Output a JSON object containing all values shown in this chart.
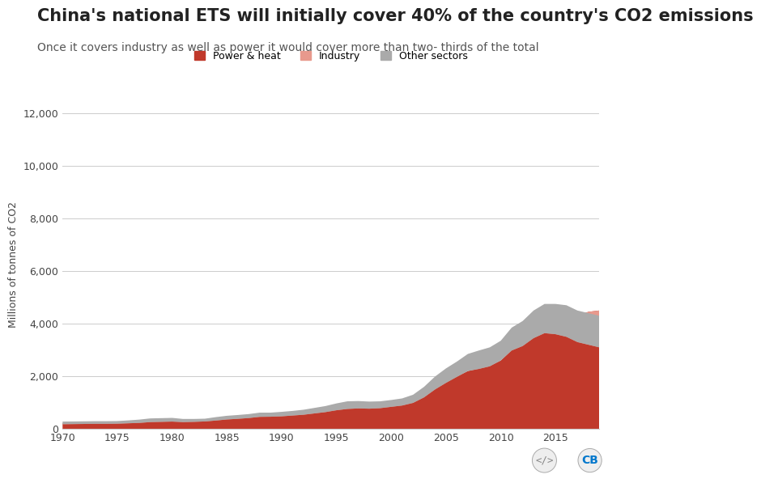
{
  "title": "China's national ETS will initially cover 40% of the country's CO2 emissions",
  "subtitle": "Once it covers industry as well as power it would cover more than two- thirds of the total",
  "ylabel": "Millions of tonnes of CO2",
  "background_color": "#ffffff",
  "title_fontsize": 15,
  "subtitle_fontsize": 10,
  "colors": {
    "power_heat": "#c0392b",
    "industry": "#e8998d",
    "other_sectors": "#aaaaaa"
  },
  "legend_labels": [
    "Power & heat",
    "Industry",
    "Other sectors"
  ],
  "years": [
    1970,
    1971,
    1972,
    1973,
    1974,
    1975,
    1976,
    1977,
    1978,
    1979,
    1980,
    1981,
    1982,
    1983,
    1984,
    1985,
    1986,
    1987,
    1988,
    1989,
    1990,
    1991,
    1992,
    1993,
    1994,
    1995,
    1996,
    1997,
    1998,
    1999,
    2000,
    2001,
    2002,
    2003,
    2004,
    2005,
    2006,
    2007,
    2008,
    2009,
    2010,
    2011,
    2012,
    2013,
    2014,
    2015,
    2016,
    2017,
    2018,
    2019
  ],
  "power_heat": [
    220,
    230,
    240,
    250,
    255,
    270,
    290,
    310,
    340,
    350,
    360,
    340,
    340,
    350,
    390,
    430,
    450,
    480,
    520,
    530,
    550,
    580,
    610,
    660,
    700,
    760,
    810,
    840,
    840,
    860,
    900,
    950,
    1050,
    1250,
    1550,
    1800,
    2000,
    2200,
    2300,
    2400,
    2600,
    3000,
    3200,
    3500,
    3800,
    4000,
    4100,
    4300,
    4450,
    4500
  ],
  "industry": [
    180,
    185,
    190,
    195,
    195,
    200,
    215,
    230,
    260,
    270,
    280,
    260,
    270,
    285,
    320,
    360,
    385,
    415,
    460,
    465,
    480,
    510,
    540,
    590,
    640,
    710,
    760,
    780,
    770,
    790,
    840,
    890,
    990,
    1200,
    1500,
    1750,
    1980,
    2200,
    2280,
    2380,
    2600,
    2980,
    3150,
    3450,
    3640,
    3600,
    3500,
    3300,
    3200,
    3100
  ],
  "other_sectors": [
    280,
    285,
    290,
    295,
    295,
    300,
    325,
    355,
    400,
    410,
    420,
    380,
    380,
    390,
    450,
    500,
    530,
    565,
    620,
    620,
    650,
    685,
    730,
    800,
    870,
    970,
    1050,
    1060,
    1040,
    1050,
    1100,
    1160,
    1300,
    1600,
    1990,
    2300,
    2560,
    2850,
    2980,
    3100,
    3350,
    3850,
    4100,
    4500,
    4750,
    4750,
    4700,
    4500,
    4400,
    4300
  ],
  "ylim": [
    0,
    12500
  ],
  "yticks": [
    0,
    2000,
    4000,
    6000,
    8000,
    10000,
    12000
  ],
  "xticks": [
    1970,
    1975,
    1980,
    1985,
    1990,
    1995,
    2000,
    2005,
    2010,
    2015
  ]
}
